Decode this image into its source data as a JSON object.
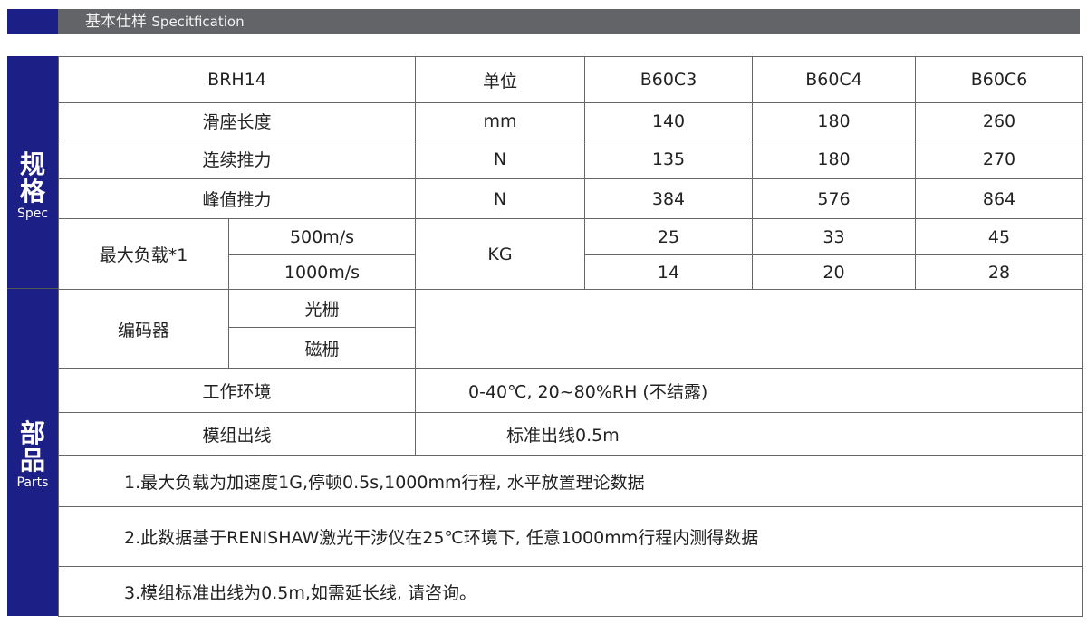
{
  "header": {
    "title_cn": "基本仕样",
    "title_en": "Specitfication",
    "accent": "#1c1f86",
    "bar_color": "#636467"
  },
  "side": {
    "spec_cn1": "规",
    "spec_cn2": "格",
    "spec_en": "Spec",
    "parts_cn1": "部",
    "parts_cn2": "品",
    "parts_en": "Parts"
  },
  "table": {
    "model": "BRH14",
    "unit_label": "单位",
    "cols": [
      "B60C3",
      "B60C4",
      "B60C6"
    ],
    "rows": [
      {
        "label": "滑座长度",
        "unit": "mm",
        "values": [
          "140",
          "180",
          "260"
        ]
      },
      {
        "label": "连续推力",
        "unit": "N",
        "values": [
          "135",
          "180",
          "270"
        ]
      },
      {
        "label": "峰值推力",
        "unit": "N",
        "values": [
          "384",
          "576",
          "864"
        ]
      }
    ],
    "load": {
      "label": "最大负载*1",
      "unit": "KG",
      "sub": [
        {
          "label": "500m/s",
          "values": [
            "25",
            "33",
            "45"
          ]
        },
        {
          "label": "1000m/s",
          "values": [
            "14",
            "20",
            "28"
          ]
        }
      ]
    },
    "encoder": {
      "label": "编码器",
      "sub": [
        "光栅",
        "磁栅"
      ]
    },
    "env": {
      "label": "工作环境",
      "value": "0-40℃, 20~80%RH (不结露)"
    },
    "cable": {
      "label": "模组出线",
      "value": "标准出线0.5m"
    },
    "notes": [
      "1.最大负载为加速度1G,停顿0.5s,1000mm行程, 水平放置理论数据",
      "2.此数据基于RENISHAW激光干涉仪在25℃环境下, 任意1000mm行程内测得数据",
      "3.模组标准出线为0.5m,如需延长线, 请咨询。"
    ]
  }
}
